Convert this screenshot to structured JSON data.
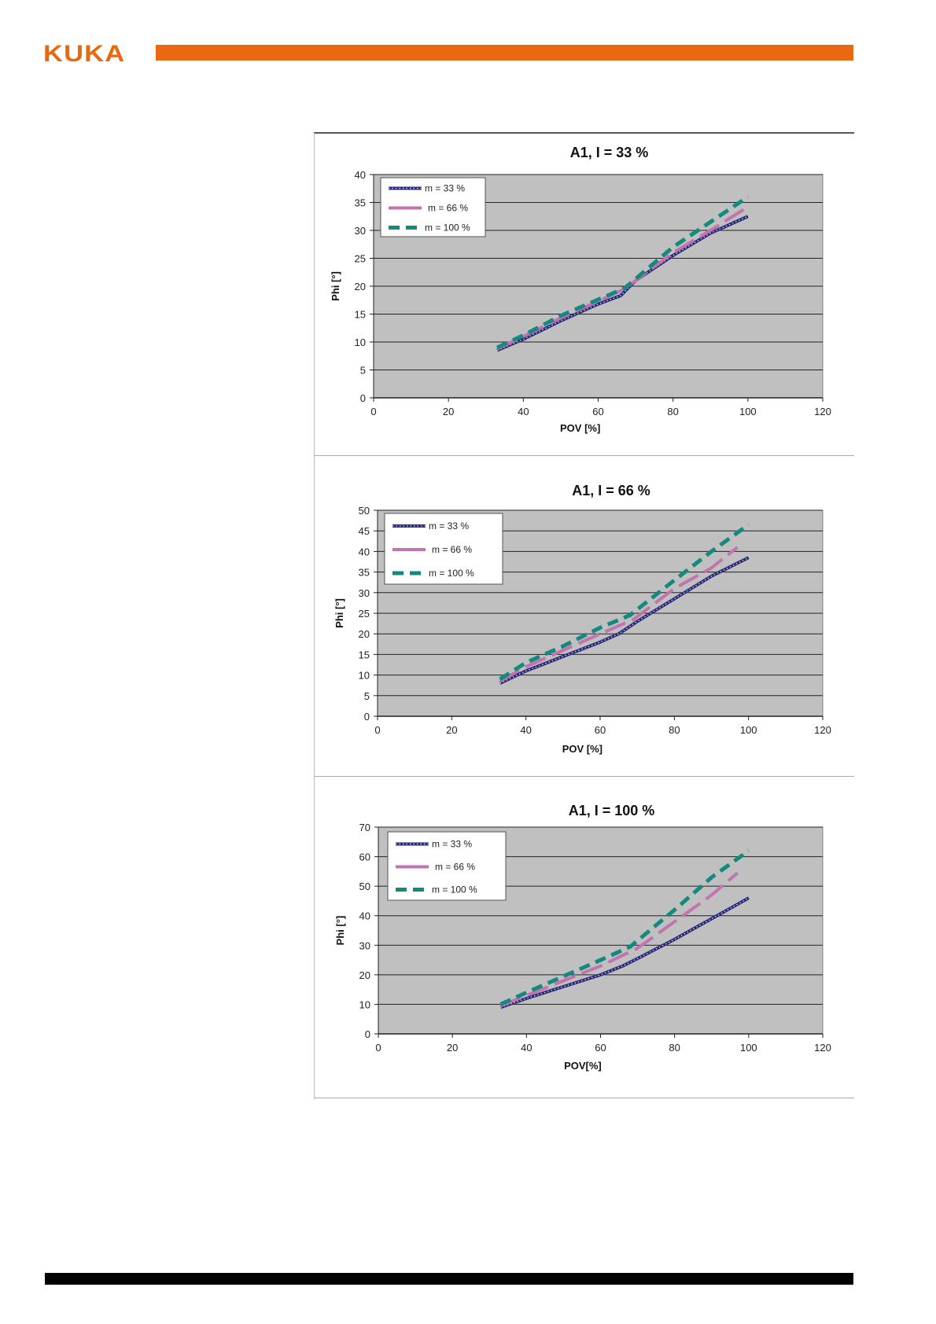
{
  "header": {
    "logo_text": "KUKA",
    "brand_color": "#e8690f"
  },
  "chart_data": [
    {
      "type": "line",
      "title": "A1, I = 33 %",
      "xlabel": "POV [%]",
      "ylabel": "Phi [°]",
      "xlim": [
        0,
        120
      ],
      "xticks": [
        0,
        20,
        40,
        60,
        80,
        100,
        120
      ],
      "ylim": [
        0,
        40
      ],
      "yticks": [
        0,
        5,
        10,
        15,
        20,
        25,
        30,
        35,
        40
      ],
      "grid": true,
      "legend": "top-left",
      "series": [
        {
          "name": "m = 33 %",
          "color": "#2b2a78",
          "x": [
            33,
            40,
            50,
            60,
            66,
            70,
            80,
            90,
            100
          ],
          "y": [
            8.5,
            10.5,
            13.8,
            16.8,
            18.3,
            21,
            25.5,
            29.5,
            32.5
          ]
        },
        {
          "name": "m = 66 %",
          "color": "#c373ad",
          "x": [
            33,
            40,
            50,
            60,
            67,
            80,
            90,
            100
          ],
          "y": [
            8.8,
            11,
            14.3,
            17.3,
            19.5,
            26,
            30,
            34.2
          ]
        },
        {
          "name": "m = 100 %",
          "color": "#138a7d",
          "x": [
            33,
            40,
            50,
            60,
            67,
            80,
            90,
            100
          ],
          "y": [
            9,
            11.2,
            14.7,
            17.6,
            19.6,
            27,
            31.5,
            36
          ]
        }
      ]
    },
    {
      "type": "line",
      "title": "A1,  I = 66 %",
      "xlabel": "POV [%]",
      "ylabel": "Phi [°]",
      "xlim": [
        0,
        120
      ],
      "xticks": [
        0,
        20,
        40,
        60,
        80,
        100,
        120
      ],
      "ylim": [
        0,
        50
      ],
      "yticks": [
        0,
        5,
        10,
        15,
        20,
        25,
        30,
        35,
        40,
        45,
        50
      ],
      "grid": true,
      "legend": "top-left",
      "series": [
        {
          "name": "m = 33 %",
          "color": "#2b2a78",
          "x": [
            33,
            40,
            50,
            60,
            65,
            70,
            80,
            90,
            100
          ],
          "y": [
            8,
            11,
            14.5,
            18,
            20,
            23,
            28.5,
            34,
            38.5
          ]
        },
        {
          "name": "m = 66 %",
          "color": "#c373ad",
          "x": [
            33,
            40,
            50,
            60,
            69,
            80,
            90,
            97
          ],
          "y": [
            8.5,
            12,
            16,
            20,
            23.5,
            31,
            36,
            41
          ]
        },
        {
          "name": "m = 100 %",
          "color": "#138a7d",
          "x": [
            33,
            40,
            50,
            60,
            68,
            80,
            90,
            100
          ],
          "y": [
            9,
            13,
            17,
            21.5,
            24.5,
            33,
            40,
            46.5
          ]
        }
      ]
    },
    {
      "type": "line",
      "title": "A1,  I = 100 %",
      "xlabel": "POV[%]",
      "ylabel": "Phi [°]",
      "xlim": [
        0,
        120
      ],
      "xticks": [
        0,
        20,
        40,
        60,
        80,
        100,
        120
      ],
      "ylim": [
        0,
        70
      ],
      "yticks": [
        0,
        10,
        20,
        30,
        40,
        50,
        60,
        70
      ],
      "grid": true,
      "legend": "top-left",
      "series": [
        {
          "name": "m = 33 %",
          "color": "#2b2a78",
          "x": [
            33,
            40,
            50,
            60,
            66,
            70,
            80,
            90,
            100
          ],
          "y": [
            9,
            12,
            16,
            20,
            23,
            25.5,
            32,
            39,
            46
          ]
        },
        {
          "name": "m = 66 %",
          "color": "#c373ad",
          "x": [
            33,
            40,
            50,
            60,
            70,
            80,
            90,
            97
          ],
          "y": [
            9.5,
            13,
            18,
            23,
            29,
            38,
            47,
            54.5
          ]
        },
        {
          "name": "m = 100 %",
          "color": "#138a7d",
          "x": [
            33,
            40,
            50,
            60,
            68,
            80,
            90,
            100
          ],
          "y": [
            10,
            14,
            19.5,
            25,
            29.5,
            42,
            53,
            62
          ]
        }
      ]
    }
  ]
}
